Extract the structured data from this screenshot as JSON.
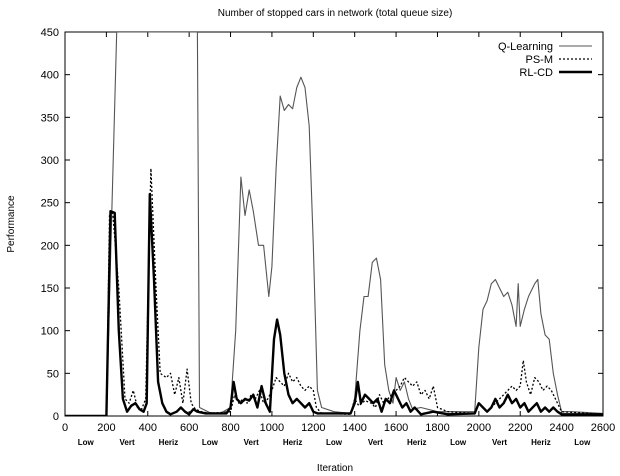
{
  "chart_data": {
    "type": "line",
    "title": "Number of stopped cars in network (total queue size)",
    "xlabel": "Iteration",
    "ylabel": "Performance",
    "xlim": [
      0,
      2600
    ],
    "ylim": [
      0,
      450
    ],
    "xticks": [
      0,
      200,
      400,
      600,
      800,
      1000,
      1200,
      1400,
      1600,
      1800,
      2000,
      2200,
      2400,
      2600
    ],
    "yticks": [
      0,
      50,
      100,
      150,
      200,
      250,
      300,
      350,
      400,
      450
    ],
    "legend_position": "top-right",
    "grid": false,
    "phase_labels": [
      {
        "text": "Low",
        "x": 100
      },
      {
        "text": "Vert",
        "x": 300
      },
      {
        "text": "Heriz",
        "x": 500
      },
      {
        "text": "Low",
        "x": 700
      },
      {
        "text": "Vert",
        "x": 900
      },
      {
        "text": "Heriz",
        "x": 1100
      },
      {
        "text": "Low",
        "x": 1300
      },
      {
        "text": "Vert",
        "x": 1500
      },
      {
        "text": "Heriz",
        "x": 1700
      },
      {
        "text": "Low",
        "x": 1900
      },
      {
        "text": "Vert",
        "x": 2100
      },
      {
        "text": "Heriz",
        "x": 2300
      },
      {
        "text": "Low",
        "x": 2500
      }
    ],
    "series": [
      {
        "name": "Q-Learning",
        "style": "thin-solid",
        "points": [
          [
            0,
            0
          ],
          [
            200,
            0
          ],
          [
            225,
            230
          ],
          [
            250,
            450
          ],
          [
            640,
            450
          ],
          [
            650,
            10
          ],
          [
            700,
            4
          ],
          [
            750,
            3
          ],
          [
            800,
            10
          ],
          [
            825,
            100
          ],
          [
            850,
            280
          ],
          [
            870,
            235
          ],
          [
            890,
            265
          ],
          [
            910,
            240
          ],
          [
            935,
            200
          ],
          [
            960,
            200
          ],
          [
            985,
            140
          ],
          [
            1000,
            175
          ],
          [
            1020,
            290
          ],
          [
            1040,
            375
          ],
          [
            1060,
            358
          ],
          [
            1080,
            365
          ],
          [
            1100,
            360
          ],
          [
            1120,
            385
          ],
          [
            1140,
            397
          ],
          [
            1160,
            385
          ],
          [
            1180,
            340
          ],
          [
            1200,
            200
          ],
          [
            1220,
            30
          ],
          [
            1240,
            10
          ],
          [
            1300,
            5
          ],
          [
            1380,
            3
          ],
          [
            1400,
            20
          ],
          [
            1425,
            100
          ],
          [
            1445,
            140
          ],
          [
            1465,
            140
          ],
          [
            1485,
            180
          ],
          [
            1505,
            185
          ],
          [
            1525,
            160
          ],
          [
            1545,
            60
          ],
          [
            1565,
            30
          ],
          [
            1585,
            15
          ],
          [
            1600,
            45
          ],
          [
            1620,
            30
          ],
          [
            1640,
            40
          ],
          [
            1660,
            20
          ],
          [
            1680,
            8
          ],
          [
            1720,
            10
          ],
          [
            1800,
            5
          ],
          [
            1900,
            5
          ],
          [
            1980,
            5
          ],
          [
            2000,
            80
          ],
          [
            2020,
            125
          ],
          [
            2040,
            135
          ],
          [
            2060,
            155
          ],
          [
            2080,
            160
          ],
          [
            2100,
            150
          ],
          [
            2120,
            140
          ],
          [
            2140,
            145
          ],
          [
            2160,
            130
          ],
          [
            2180,
            105
          ],
          [
            2190,
            155
          ],
          [
            2200,
            105
          ],
          [
            2220,
            125
          ],
          [
            2240,
            140
          ],
          [
            2270,
            155
          ],
          [
            2285,
            160
          ],
          [
            2300,
            120
          ],
          [
            2320,
            95
          ],
          [
            2340,
            90
          ],
          [
            2360,
            50
          ],
          [
            2380,
            25
          ],
          [
            2400,
            5
          ],
          [
            2450,
            5
          ],
          [
            2600,
            3
          ]
        ]
      },
      {
        "name": "PS-M",
        "style": "dotted",
        "points": [
          [
            0,
            0
          ],
          [
            200,
            0
          ],
          [
            215,
            235
          ],
          [
            230,
            240
          ],
          [
            260,
            150
          ],
          [
            290,
            20
          ],
          [
            310,
            15
          ],
          [
            330,
            30
          ],
          [
            350,
            10
          ],
          [
            370,
            8
          ],
          [
            390,
            20
          ],
          [
            415,
            290
          ],
          [
            440,
            150
          ],
          [
            460,
            50
          ],
          [
            490,
            45
          ],
          [
            510,
            50
          ],
          [
            530,
            25
          ],
          [
            550,
            45
          ],
          [
            570,
            15
          ],
          [
            590,
            55
          ],
          [
            610,
            15
          ],
          [
            630,
            8
          ],
          [
            660,
            5
          ],
          [
            700,
            3
          ],
          [
            800,
            5
          ],
          [
            820,
            25
          ],
          [
            840,
            15
          ],
          [
            860,
            20
          ],
          [
            880,
            15
          ],
          [
            900,
            25
          ],
          [
            920,
            20
          ],
          [
            940,
            30
          ],
          [
            960,
            15
          ],
          [
            980,
            20
          ],
          [
            1000,
            30
          ],
          [
            1020,
            45
          ],
          [
            1040,
            40
          ],
          [
            1060,
            35
          ],
          [
            1080,
            50
          ],
          [
            1100,
            40
          ],
          [
            1120,
            45
          ],
          [
            1140,
            35
          ],
          [
            1160,
            30
          ],
          [
            1180,
            35
          ],
          [
            1200,
            30
          ],
          [
            1215,
            10
          ],
          [
            1240,
            3
          ],
          [
            1380,
            2
          ],
          [
            1400,
            20
          ],
          [
            1420,
            12
          ],
          [
            1450,
            18
          ],
          [
            1480,
            15
          ],
          [
            1500,
            10
          ],
          [
            1520,
            25
          ],
          [
            1540,
            15
          ],
          [
            1560,
            20
          ],
          [
            1580,
            25
          ],
          [
            1600,
            30
          ],
          [
            1620,
            35
          ],
          [
            1640,
            45
          ],
          [
            1660,
            40
          ],
          [
            1680,
            35
          ],
          [
            1700,
            40
          ],
          [
            1720,
            25
          ],
          [
            1740,
            30
          ],
          [
            1760,
            20
          ],
          [
            1780,
            35
          ],
          [
            1800,
            10
          ],
          [
            1850,
            5
          ],
          [
            1980,
            3
          ],
          [
            2000,
            15
          ],
          [
            2020,
            10
          ],
          [
            2040,
            5
          ],
          [
            2060,
            10
          ],
          [
            2080,
            15
          ],
          [
            2100,
            20
          ],
          [
            2120,
            25
          ],
          [
            2140,
            30
          ],
          [
            2160,
            35
          ],
          [
            2180,
            30
          ],
          [
            2200,
            35
          ],
          [
            2215,
            65
          ],
          [
            2230,
            40
          ],
          [
            2250,
            25
          ],
          [
            2270,
            45
          ],
          [
            2290,
            40
          ],
          [
            2310,
            30
          ],
          [
            2330,
            35
          ],
          [
            2350,
            30
          ],
          [
            2370,
            20
          ],
          [
            2400,
            5
          ],
          [
            2600,
            2
          ]
        ]
      },
      {
        "name": "RL-CD",
        "style": "thick-solid",
        "points": [
          [
            0,
            0
          ],
          [
            200,
            0
          ],
          [
            220,
            240
          ],
          [
            240,
            238
          ],
          [
            260,
            100
          ],
          [
            280,
            20
          ],
          [
            300,
            5
          ],
          [
            320,
            12
          ],
          [
            340,
            15
          ],
          [
            360,
            8
          ],
          [
            380,
            5
          ],
          [
            395,
            15
          ],
          [
            410,
            260
          ],
          [
            430,
            160
          ],
          [
            450,
            40
          ],
          [
            470,
            15
          ],
          [
            490,
            5
          ],
          [
            510,
            2
          ],
          [
            540,
            5
          ],
          [
            560,
            10
          ],
          [
            580,
            5
          ],
          [
            600,
            2
          ],
          [
            620,
            8
          ],
          [
            640,
            5
          ],
          [
            680,
            3
          ],
          [
            780,
            3
          ],
          [
            800,
            10
          ],
          [
            815,
            40
          ],
          [
            830,
            20
          ],
          [
            850,
            15
          ],
          [
            870,
            20
          ],
          [
            890,
            18
          ],
          [
            910,
            25
          ],
          [
            930,
            10
          ],
          [
            950,
            35
          ],
          [
            970,
            15
          ],
          [
            990,
            5
          ],
          [
            1010,
            90
          ],
          [
            1025,
            113
          ],
          [
            1040,
            95
          ],
          [
            1060,
            50
          ],
          [
            1080,
            25
          ],
          [
            1100,
            15
          ],
          [
            1120,
            20
          ],
          [
            1140,
            15
          ],
          [
            1160,
            10
          ],
          [
            1180,
            15
          ],
          [
            1200,
            5
          ],
          [
            1220,
            3
          ],
          [
            1380,
            3
          ],
          [
            1400,
            15
          ],
          [
            1415,
            40
          ],
          [
            1430,
            15
          ],
          [
            1450,
            25
          ],
          [
            1470,
            20
          ],
          [
            1490,
            15
          ],
          [
            1510,
            20
          ],
          [
            1530,
            5
          ],
          [
            1550,
            20
          ],
          [
            1570,
            15
          ],
          [
            1590,
            30
          ],
          [
            1610,
            20
          ],
          [
            1630,
            10
          ],
          [
            1650,
            15
          ],
          [
            1670,
            5
          ],
          [
            1690,
            10
          ],
          [
            1720,
            2
          ],
          [
            1780,
            5
          ],
          [
            1850,
            2
          ],
          [
            1980,
            3
          ],
          [
            2000,
            15
          ],
          [
            2020,
            10
          ],
          [
            2040,
            5
          ],
          [
            2060,
            10
          ],
          [
            2080,
            20
          ],
          [
            2100,
            10
          ],
          [
            2120,
            15
          ],
          [
            2140,
            25
          ],
          [
            2160,
            15
          ],
          [
            2180,
            20
          ],
          [
            2200,
            10
          ],
          [
            2220,
            15
          ],
          [
            2240,
            5
          ],
          [
            2260,
            10
          ],
          [
            2280,
            15
          ],
          [
            2300,
            5
          ],
          [
            2320,
            10
          ],
          [
            2340,
            5
          ],
          [
            2360,
            10
          ],
          [
            2380,
            5
          ],
          [
            2400,
            2
          ],
          [
            2600,
            2
          ]
        ]
      }
    ]
  }
}
